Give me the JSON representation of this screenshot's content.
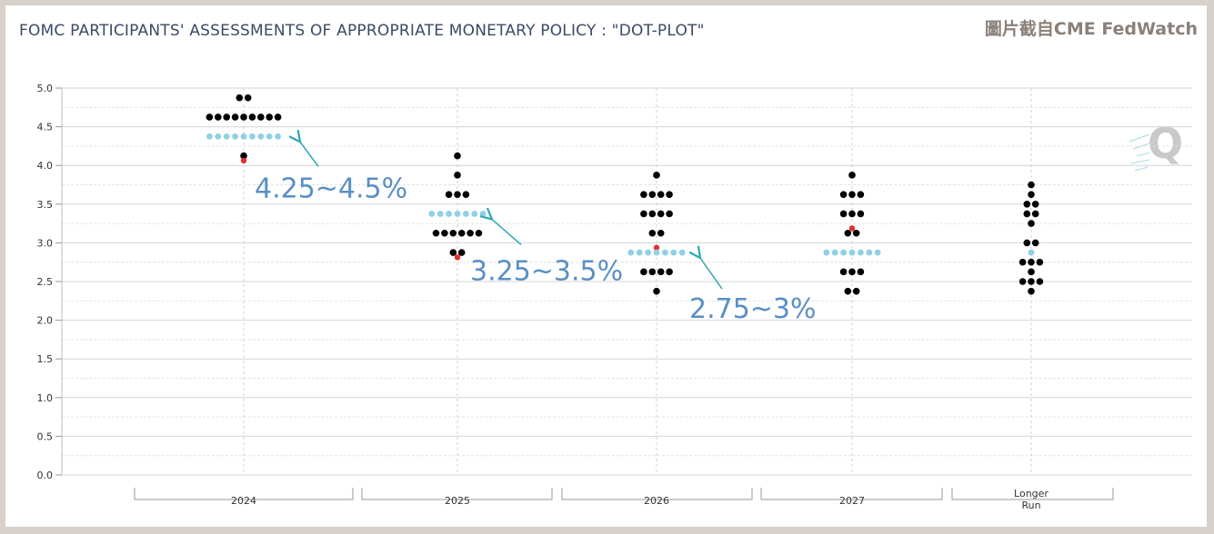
{
  "header": {
    "title": "FOMC PARTICIPANTS' ASSESSMENTS OF APPROPRIATE MONETARY POLICY : \"DOT-PLOT\"",
    "watermark": "圖片截自CME FedWatch"
  },
  "colors": {
    "dot": "#000000",
    "median": "#e03030",
    "expected": "#8fd0e6",
    "annotation": "#5a8fc4",
    "arrow": "#2fa9b5"
  },
  "chart_data": {
    "type": "scatter",
    "title": "FOMC PARTICIPANTS' ASSESSMENTS OF APPROPRIATE MONETARY POLICY : \"DOT-PLOT\"",
    "xlabel": "",
    "ylabel": "",
    "ylim": [
      0,
      5
    ],
    "yticks": [
      "0.0",
      "0.5",
      "1.0",
      "1.5",
      "2.0",
      "2.5",
      "3.0",
      "3.5",
      "4.0",
      "4.5",
      "5.0"
    ],
    "grid": true,
    "categories": [
      "2024",
      "2025",
      "2026",
      "2027",
      "Longer Run"
    ],
    "dots": [
      {
        "category": "2024",
        "levels": [
          {
            "rate": 4.875,
            "count": 2
          },
          {
            "rate": 4.625,
            "count": 9
          },
          {
            "rate": 4.125,
            "count": 1
          },
          {
            "rate": 4.0625,
            "count": 1,
            "median": true
          }
        ]
      },
      {
        "category": "2025",
        "levels": [
          {
            "rate": 4.125,
            "count": 1
          },
          {
            "rate": 3.875,
            "count": 1
          },
          {
            "rate": 3.625,
            "count": 3
          },
          {
            "rate": 3.125,
            "count": 6
          },
          {
            "rate": 2.875,
            "count": 2
          },
          {
            "rate": 2.8125,
            "count": 1,
            "median": true
          }
        ]
      },
      {
        "category": "2026",
        "levels": [
          {
            "rate": 3.875,
            "count": 1
          },
          {
            "rate": 3.625,
            "count": 4
          },
          {
            "rate": 3.375,
            "count": 4
          },
          {
            "rate": 3.125,
            "count": 2
          },
          {
            "rate": 2.9375,
            "count": 1,
            "median": true
          },
          {
            "rate": 2.625,
            "count": 4
          },
          {
            "rate": 2.375,
            "count": 1
          }
        ]
      },
      {
        "category": "2027",
        "levels": [
          {
            "rate": 3.875,
            "count": 1
          },
          {
            "rate": 3.625,
            "count": 3
          },
          {
            "rate": 3.375,
            "count": 3
          },
          {
            "rate": 3.1875,
            "count": 1,
            "median": true
          },
          {
            "rate": 3.125,
            "count": 2
          },
          {
            "rate": 2.625,
            "count": 3
          },
          {
            "rate": 2.375,
            "count": 2
          }
        ]
      },
      {
        "category": "Longer Run",
        "levels": [
          {
            "rate": 3.75,
            "count": 1
          },
          {
            "rate": 3.625,
            "count": 1
          },
          {
            "rate": 3.5,
            "count": 2
          },
          {
            "rate": 3.375,
            "count": 2
          },
          {
            "rate": 3.25,
            "count": 1
          },
          {
            "rate": 3.0,
            "count": 2
          },
          {
            "rate": 2.875,
            "count": 1,
            "median": true
          },
          {
            "rate": 2.75,
            "count": 3
          },
          {
            "rate": 2.625,
            "count": 1
          },
          {
            "rate": 2.5,
            "count": 3
          },
          {
            "rate": 2.375,
            "count": 1
          }
        ]
      }
    ],
    "expected_rate_dots": [
      {
        "category": "2024",
        "rate": 4.375,
        "count": 9
      },
      {
        "category": "2025",
        "rate": 3.375,
        "count": 7
      },
      {
        "category": "2026",
        "rate": 2.875,
        "count": 7
      },
      {
        "category": "2027",
        "rate": 2.875,
        "count": 7
      },
      {
        "category": "Longer Run",
        "rate": 2.875,
        "count": 1
      }
    ],
    "annotations": [
      {
        "text": "4.25~4.5%",
        "category": "2024",
        "rate": 4.375
      },
      {
        "text": "3.25~3.5%",
        "category": "2025",
        "rate": 3.375
      },
      {
        "text": "2.75~3%",
        "category": "2026",
        "rate": 2.875
      }
    ]
  }
}
